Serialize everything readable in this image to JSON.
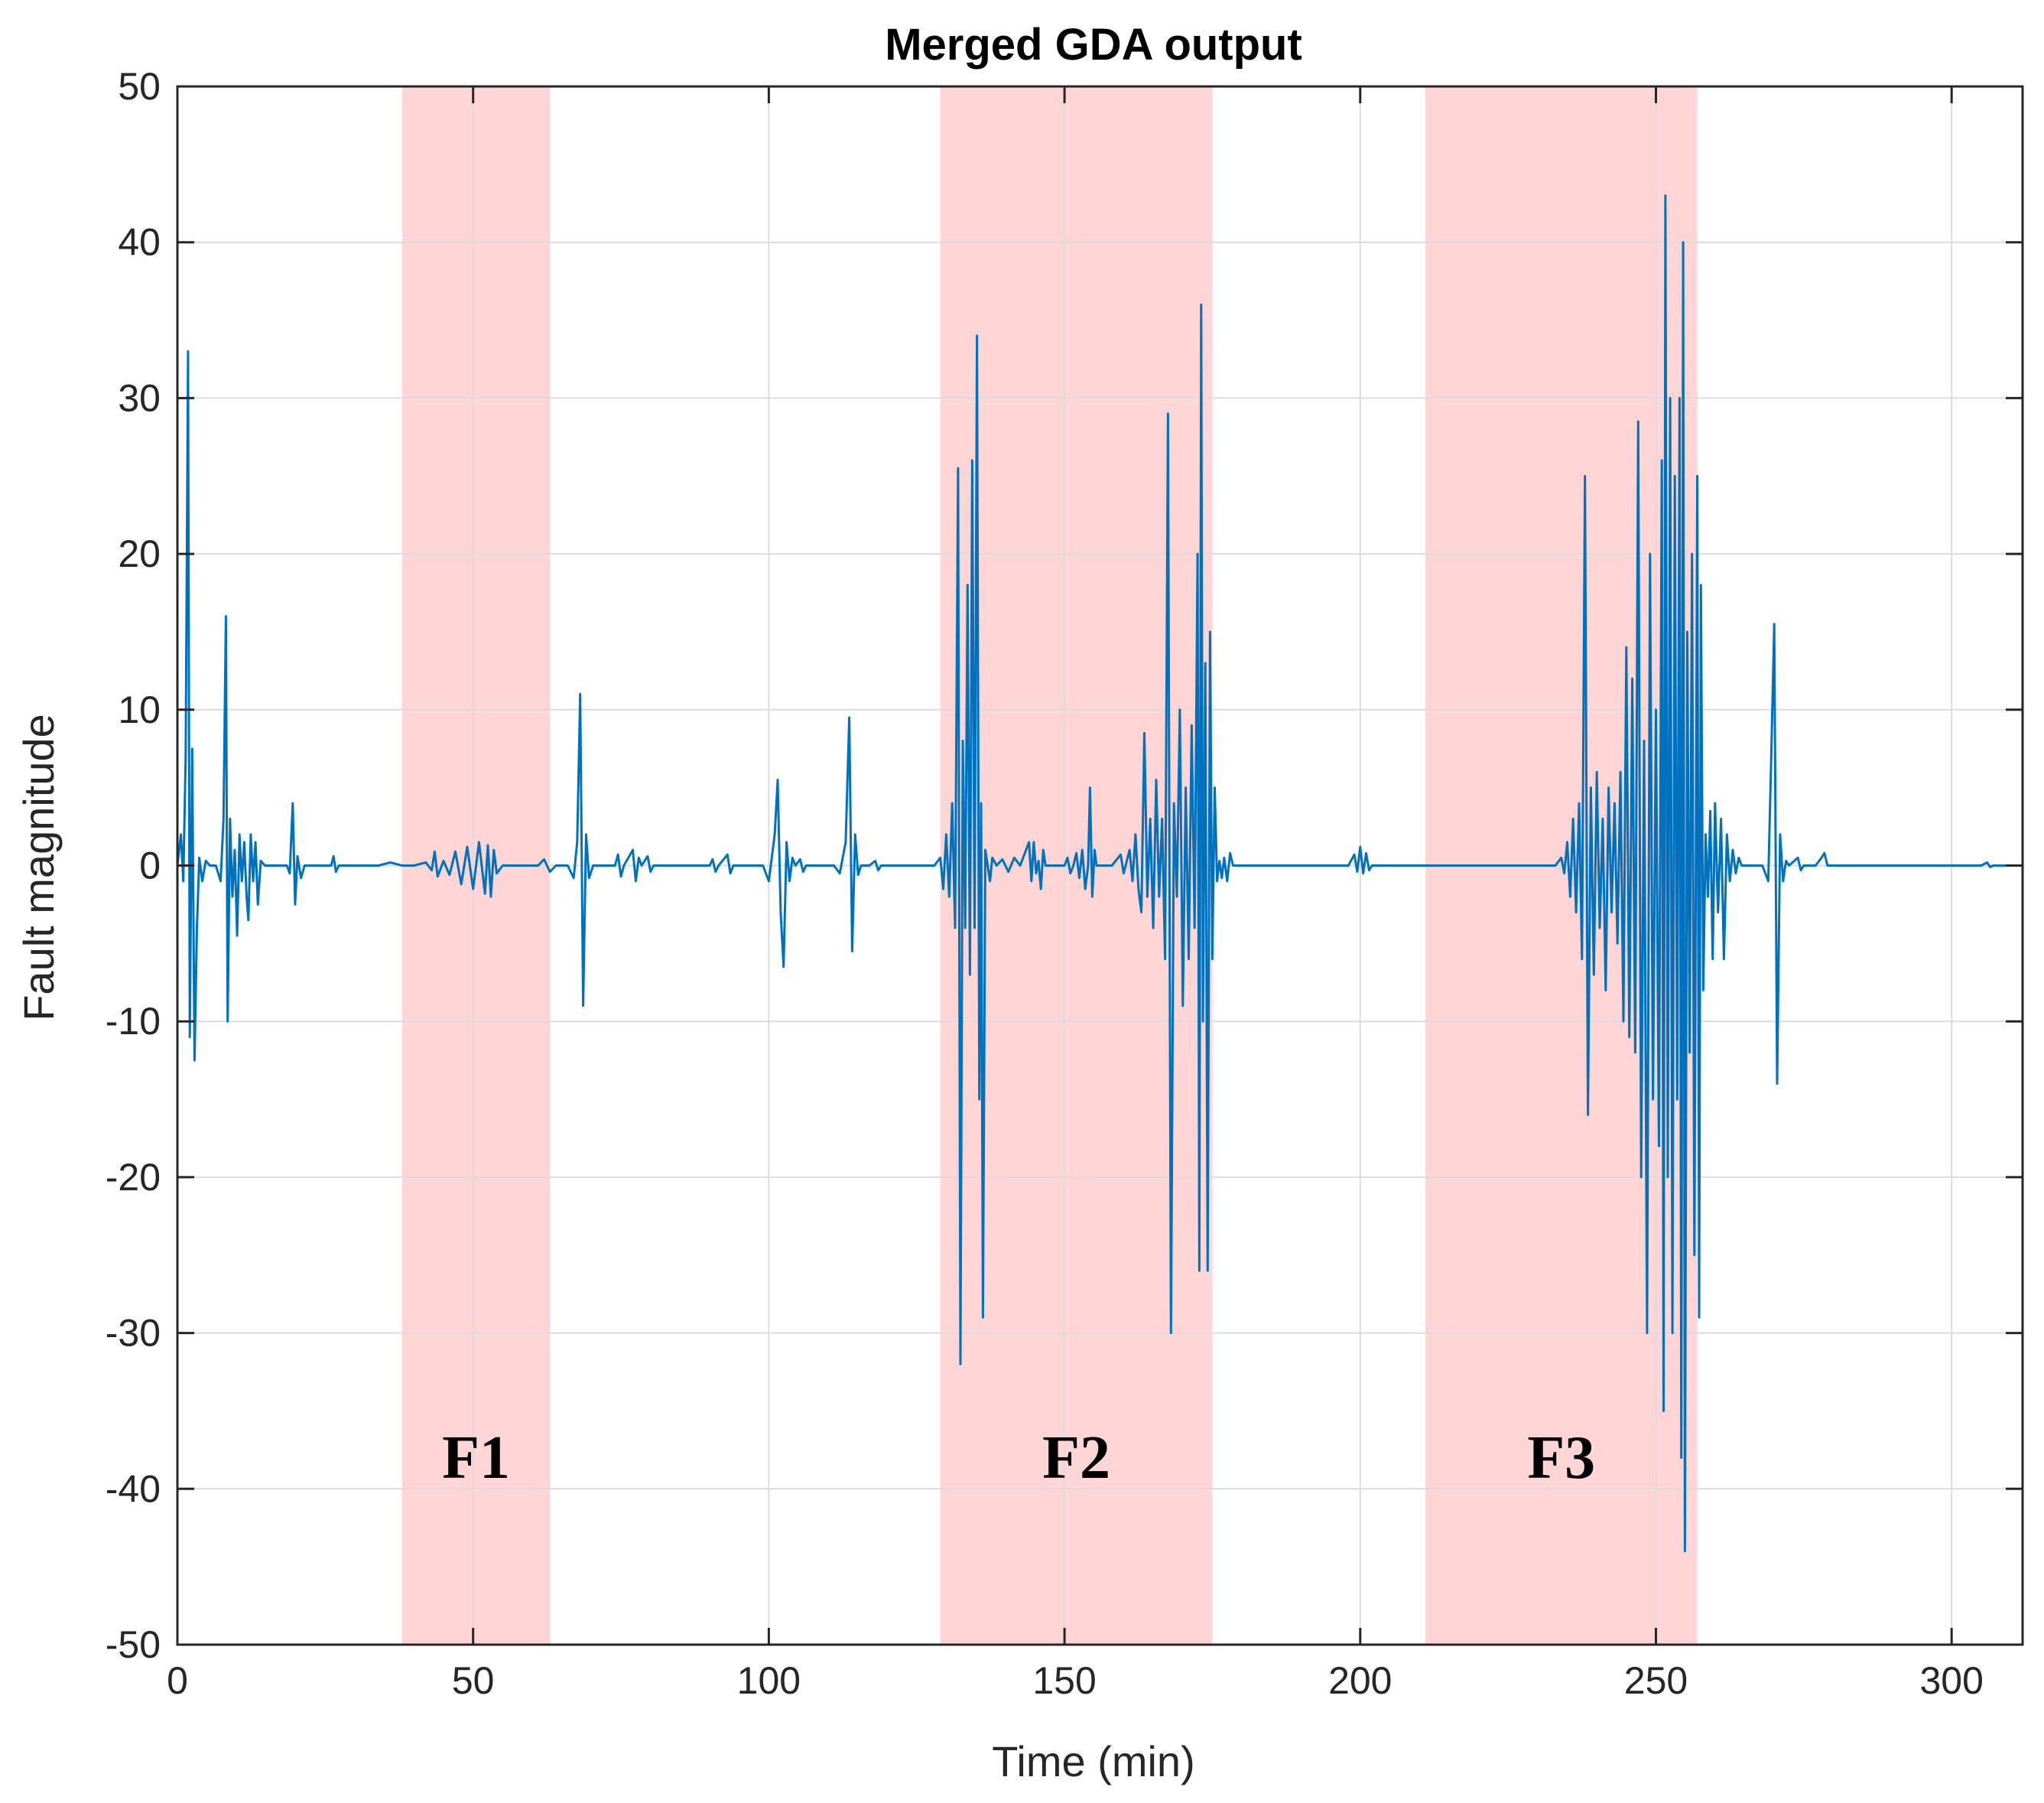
{
  "chart_data": {
    "type": "line",
    "title": "Merged GDA output",
    "xlabel": "Time (min)",
    "ylabel": "Fault magnitude",
    "xlim": [
      0,
      312
    ],
    "ylim": [
      -50,
      50
    ],
    "xticks": [
      0,
      50,
      100,
      150,
      200,
      250,
      300
    ],
    "yticks": [
      -50,
      -40,
      -30,
      -20,
      -10,
      0,
      10,
      20,
      30,
      40,
      50
    ],
    "grid": true,
    "line_color": "#0072BD",
    "region_color": "#FFB3B3",
    "fault_regions": [
      {
        "label": "F1",
        "start": 38,
        "end": 63
      },
      {
        "label": "F2",
        "start": 129,
        "end": 175
      },
      {
        "label": "F3",
        "start": 211,
        "end": 257
      }
    ],
    "series": [
      {
        "name": "Merged GDA output",
        "points": [
          [
            0,
            0
          ],
          [
            0.6,
            2
          ],
          [
            1,
            -1
          ],
          [
            1.4,
            7
          ],
          [
            1.8,
            33
          ],
          [
            2.1,
            -11
          ],
          [
            2.5,
            7.5
          ],
          [
            2.9,
            -12.5
          ],
          [
            3.3,
            -4
          ],
          [
            3.7,
            0.5
          ],
          [
            4.2,
            -1
          ],
          [
            4.8,
            0.3
          ],
          [
            5.5,
            0
          ],
          [
            6.5,
            0
          ],
          [
            7.3,
            -1
          ],
          [
            7.8,
            3
          ],
          [
            8.2,
            16
          ],
          [
            8.5,
            -10
          ],
          [
            8.9,
            3
          ],
          [
            9.3,
            -2
          ],
          [
            9.7,
            1
          ],
          [
            10.1,
            -4.5
          ],
          [
            10.5,
            2
          ],
          [
            10.9,
            -1
          ],
          [
            11.3,
            1.5
          ],
          [
            11.7,
            -2
          ],
          [
            12,
            -3.5
          ],
          [
            12.4,
            2
          ],
          [
            12.8,
            -1
          ],
          [
            13.2,
            1.5
          ],
          [
            13.6,
            -2.5
          ],
          [
            14.1,
            0.3
          ],
          [
            14.8,
            0
          ],
          [
            16,
            0
          ],
          [
            18.5,
            0
          ],
          [
            19,
            -0.5
          ],
          [
            19.5,
            4
          ],
          [
            19.9,
            -2.5
          ],
          [
            20.3,
            0.6
          ],
          [
            20.9,
            -0.8
          ],
          [
            21.5,
            0
          ],
          [
            26,
            0
          ],
          [
            26.4,
            0.6
          ],
          [
            26.8,
            -0.4
          ],
          [
            27.3,
            0
          ],
          [
            30,
            0
          ],
          [
            34,
            0
          ],
          [
            36,
            0.2
          ],
          [
            38,
            0
          ],
          [
            40,
            0
          ],
          [
            42,
            0.2
          ],
          [
            43,
            -0.3
          ],
          [
            43.5,
            0.9
          ],
          [
            44,
            -0.7
          ],
          [
            45,
            0.3
          ],
          [
            46,
            -0.6
          ],
          [
            47,
            0.9
          ],
          [
            48,
            -1.2
          ],
          [
            49,
            1.2
          ],
          [
            50,
            -1.5
          ],
          [
            51,
            1.5
          ],
          [
            52,
            -1.8
          ],
          [
            52.5,
            1.3
          ],
          [
            53,
            -2
          ],
          [
            53.5,
            1
          ],
          [
            54,
            -0.5
          ],
          [
            55,
            0
          ],
          [
            58,
            0
          ],
          [
            61,
            0
          ],
          [
            62,
            0.4
          ],
          [
            63,
            -0.4
          ],
          [
            64,
            0
          ],
          [
            66,
            0
          ],
          [
            67,
            -0.8
          ],
          [
            67.6,
            1.5
          ],
          [
            68.1,
            11
          ],
          [
            68.6,
            -9
          ],
          [
            69.1,
            2
          ],
          [
            69.6,
            -0.8
          ],
          [
            70.3,
            0
          ],
          [
            72,
            0
          ],
          [
            74,
            0
          ],
          [
            74.5,
            0.7
          ],
          [
            75,
            -0.7
          ],
          [
            75.5,
            0
          ],
          [
            77,
            1
          ],
          [
            77.5,
            -1
          ],
          [
            78,
            0.5
          ],
          [
            78.5,
            0
          ],
          [
            79.5,
            0.6
          ],
          [
            80,
            -0.4
          ],
          [
            80.5,
            0
          ],
          [
            82,
            0
          ],
          [
            90,
            0
          ],
          [
            90.5,
            0.4
          ],
          [
            91,
            -0.4
          ],
          [
            91.5,
            0
          ],
          [
            93,
            0.7
          ],
          [
            93.5,
            -0.5
          ],
          [
            94,
            0
          ],
          [
            96,
            0
          ],
          [
            99,
            0
          ],
          [
            100,
            -1
          ],
          [
            101,
            2
          ],
          [
            101.5,
            5.5
          ],
          [
            102,
            -3
          ],
          [
            102.5,
            -6.5
          ],
          [
            103,
            1.5
          ],
          [
            103.5,
            -1
          ],
          [
            104,
            0.5
          ],
          [
            104.5,
            0
          ],
          [
            105.3,
            0.4
          ],
          [
            105.8,
            -0.4
          ],
          [
            106.3,
            0
          ],
          [
            111,
            0
          ],
          [
            112,
            -0.5
          ],
          [
            113,
            1.5
          ],
          [
            113.6,
            9.5
          ],
          [
            114.1,
            -5.5
          ],
          [
            114.6,
            2
          ],
          [
            115.1,
            -0.6
          ],
          [
            115.6,
            0
          ],
          [
            117,
            0
          ],
          [
            118,
            0.3
          ],
          [
            118.5,
            -0.3
          ],
          [
            119,
            0
          ],
          [
            125,
            0
          ],
          [
            128,
            0
          ],
          [
            129,
            0.5
          ],
          [
            129.5,
            -1.5
          ],
          [
            130,
            2
          ],
          [
            130.5,
            -2
          ],
          [
            131,
            4
          ],
          [
            131.5,
            -4
          ],
          [
            132,
            25.5
          ],
          [
            132.4,
            -32
          ],
          [
            132.8,
            8
          ],
          [
            133.2,
            -4
          ],
          [
            133.6,
            18
          ],
          [
            134,
            -7
          ],
          [
            134.4,
            26
          ],
          [
            134.8,
            -4
          ],
          [
            135.2,
            34
          ],
          [
            135.6,
            -15
          ],
          [
            135.9,
            4
          ],
          [
            136.2,
            -29
          ],
          [
            136.6,
            1
          ],
          [
            137,
            0
          ],
          [
            137.4,
            -1
          ],
          [
            137.8,
            0.5
          ],
          [
            138.5,
            0
          ],
          [
            139.5,
            0.4
          ],
          [
            140.5,
            -0.4
          ],
          [
            141.5,
            0.5
          ],
          [
            142.5,
            0
          ],
          [
            144,
            1.5
          ],
          [
            144.4,
            -1
          ],
          [
            144.8,
            1.5
          ],
          [
            145.2,
            -0.5
          ],
          [
            145.6,
            0.3
          ],
          [
            146,
            -1.5
          ],
          [
            146.4,
            1
          ],
          [
            146.8,
            0
          ],
          [
            148,
            0
          ],
          [
            150,
            0
          ],
          [
            150.5,
            0.5
          ],
          [
            151,
            -0.5
          ],
          [
            151.5,
            0
          ],
          [
            152,
            0.8
          ],
          [
            152.5,
            -0.8
          ],
          [
            153,
            1
          ],
          [
            153.5,
            -1.5
          ],
          [
            154,
            0
          ],
          [
            154.3,
            5
          ],
          [
            154.7,
            -2
          ],
          [
            155.1,
            1
          ],
          [
            155.4,
            0
          ],
          [
            158,
            0
          ],
          [
            159.5,
            0.7
          ],
          [
            160,
            -0.5
          ],
          [
            161,
            1
          ],
          [
            161.5,
            -1
          ],
          [
            162,
            2
          ],
          [
            162.5,
            -1.5
          ],
          [
            163,
            -3
          ],
          [
            163.5,
            8.5
          ],
          [
            164,
            -2
          ],
          [
            164.5,
            3
          ],
          [
            165,
            -4
          ],
          [
            165.5,
            5.5
          ],
          [
            166,
            -2
          ],
          [
            166.5,
            3
          ],
          [
            167,
            -6
          ],
          [
            167.5,
            29
          ],
          [
            168,
            -30
          ],
          [
            168.5,
            4
          ],
          [
            169,
            -2
          ],
          [
            169.5,
            10
          ],
          [
            170,
            -9
          ],
          [
            170.5,
            5
          ],
          [
            171,
            -6
          ],
          [
            171.5,
            9
          ],
          [
            172,
            -4
          ],
          [
            172.5,
            20
          ],
          [
            172.8,
            -26
          ],
          [
            173.1,
            36
          ],
          [
            173.4,
            -10
          ],
          [
            173.8,
            13
          ],
          [
            174.2,
            -26
          ],
          [
            174.6,
            15
          ],
          [
            175,
            -6
          ],
          [
            175.4,
            5
          ],
          [
            175.8,
            -1
          ],
          [
            176.2,
            0.3
          ],
          [
            176.6,
            -0.8
          ],
          [
            177,
            0.5
          ],
          [
            177.5,
            -1
          ],
          [
            178,
            0.8
          ],
          [
            178.5,
            0
          ],
          [
            185,
            0
          ],
          [
            195,
            0
          ],
          [
            198,
            0
          ],
          [
            199,
            0.7
          ],
          [
            199.5,
            -0.4
          ],
          [
            200,
            1.2
          ],
          [
            200.5,
            -0.5
          ],
          [
            201,
            0.8
          ],
          [
            201.5,
            -0.3
          ],
          [
            202,
            0
          ],
          [
            206,
            0
          ],
          [
            211,
            0
          ],
          [
            222,
            0
          ],
          [
            231,
            0
          ],
          [
            233,
            0
          ],
          [
            234,
            0.5
          ],
          [
            234.5,
            -0.5
          ],
          [
            235,
            1.5
          ],
          [
            235.5,
            -2
          ],
          [
            236,
            3
          ],
          [
            236.5,
            -3
          ],
          [
            237,
            4
          ],
          [
            237.5,
            -6
          ],
          [
            238,
            25
          ],
          [
            238.5,
            -16
          ],
          [
            239,
            5
          ],
          [
            239.5,
            -7
          ],
          [
            240,
            6
          ],
          [
            240.5,
            -4
          ],
          [
            241,
            3
          ],
          [
            241.5,
            -8
          ],
          [
            242,
            5
          ],
          [
            242.5,
            -3
          ],
          [
            243,
            4
          ],
          [
            243.5,
            -5
          ],
          [
            244,
            6
          ],
          [
            244.5,
            -10
          ],
          [
            245,
            14
          ],
          [
            245.5,
            -11
          ],
          [
            246,
            12
          ],
          [
            246.5,
            -12
          ],
          [
            247,
            28.5
          ],
          [
            247.5,
            -20
          ],
          [
            248,
            8
          ],
          [
            248.5,
            -30
          ],
          [
            249,
            20
          ],
          [
            249.5,
            -15
          ],
          [
            250,
            10
          ],
          [
            250.5,
            -18
          ],
          [
            251,
            26
          ],
          [
            251.3,
            -35
          ],
          [
            251.6,
            43
          ],
          [
            252,
            -20
          ],
          [
            252.4,
            30
          ],
          [
            252.8,
            -30
          ],
          [
            253.2,
            25
          ],
          [
            253.6,
            -15
          ],
          [
            254,
            30
          ],
          [
            254.3,
            -38
          ],
          [
            254.6,
            40
          ],
          [
            254.9,
            -44
          ],
          [
            255.3,
            15
          ],
          [
            255.7,
            -12
          ],
          [
            256.1,
            20
          ],
          [
            256.5,
            -25
          ],
          [
            257,
            25
          ],
          [
            257.3,
            -29
          ],
          [
            257.6,
            18
          ],
          [
            258,
            -8
          ],
          [
            258.4,
            2
          ],
          [
            258.8,
            -2
          ],
          [
            259.2,
            3.5
          ],
          [
            259.6,
            -6
          ],
          [
            260,
            4
          ],
          [
            260.5,
            -3
          ],
          [
            261,
            3
          ],
          [
            261.5,
            -6
          ],
          [
            262,
            2
          ],
          [
            262.5,
            -1
          ],
          [
            263,
            1
          ],
          [
            263.5,
            -0.5
          ],
          [
            264,
            0.5
          ],
          [
            264.5,
            0
          ],
          [
            266,
            0
          ],
          [
            268,
            0
          ],
          [
            269,
            -1
          ],
          [
            269.5,
            7
          ],
          [
            270,
            15.5
          ],
          [
            270.5,
            -14
          ],
          [
            271,
            2
          ],
          [
            271.5,
            -1
          ],
          [
            272,
            0.3
          ],
          [
            272.5,
            0
          ],
          [
            274,
            0.5
          ],
          [
            274.5,
            -0.3
          ],
          [
            275,
            0
          ],
          [
            277,
            0
          ],
          [
            278,
            0.5
          ],
          [
            278.5,
            0.8
          ],
          [
            279,
            0
          ],
          [
            281,
            0
          ],
          [
            290,
            0
          ],
          [
            300,
            0
          ],
          [
            305,
            0
          ],
          [
            306,
            0.2
          ],
          [
            306.5,
            -0.1
          ],
          [
            307,
            0
          ],
          [
            312,
            0
          ]
        ]
      }
    ]
  }
}
